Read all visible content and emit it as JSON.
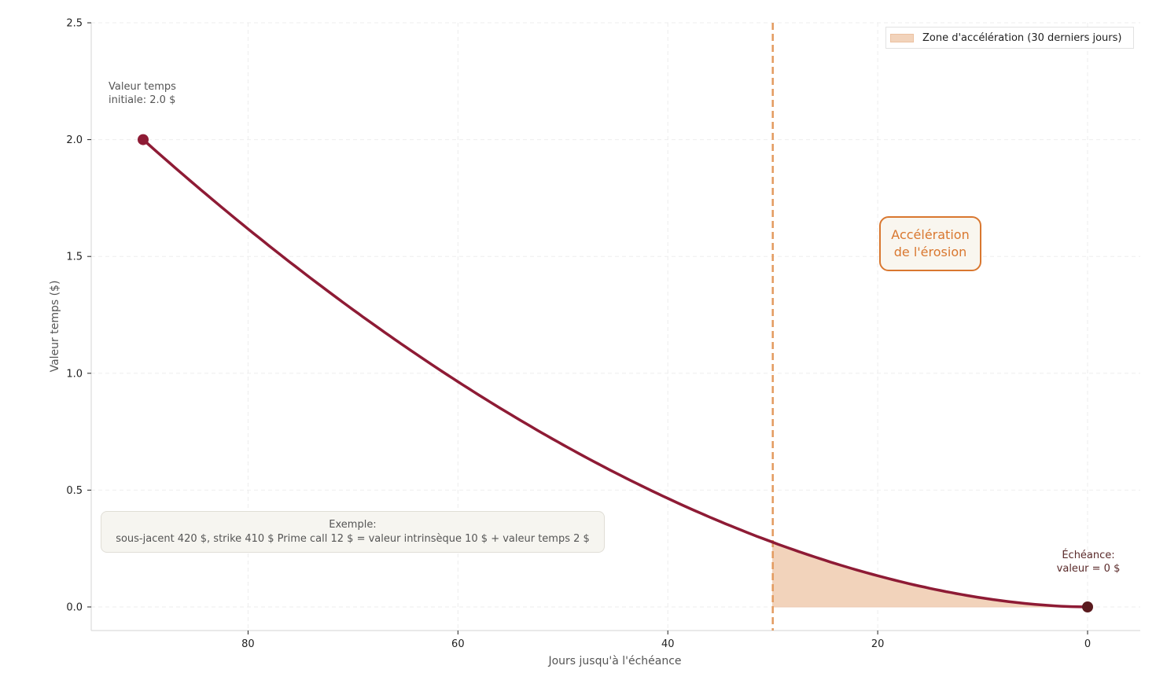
{
  "chart_data": {
    "type": "line",
    "title": "",
    "xlabel": "Jours jusqu'à l'échéance",
    "ylabel": "Valeur temps ($)",
    "xlim": [
      95,
      -5
    ],
    "ylim": [
      -0.1,
      2.5
    ],
    "x_inverted": true,
    "grid": true,
    "legend_position": "upper right",
    "x_ticks": [
      80,
      60,
      40,
      20,
      0
    ],
    "y_ticks": [
      0.0,
      0.5,
      1.0,
      1.5,
      2.0,
      2.5
    ],
    "y_tick_labels": [
      "0.0",
      "0.5",
      "1.0",
      "1.5",
      "2.0",
      "2.5"
    ],
    "series": [
      {
        "name": "Valeur temps",
        "color": "#8e1b35",
        "x": [
          90,
          85,
          80,
          75,
          70,
          65,
          60,
          55,
          50,
          45,
          40,
          35,
          30,
          25,
          20,
          15,
          10,
          5,
          0
        ],
        "values": [
          2.0,
          1.81,
          1.62,
          1.44,
          1.27,
          1.11,
          0.96,
          0.83,
          0.7,
          0.57,
          0.46,
          0.36,
          0.28,
          0.2,
          0.13,
          0.08,
          0.04,
          0.01,
          0.0
        ]
      }
    ],
    "shaded_region": {
      "label": "Zone d'accélération (30 derniers jours)",
      "x_from": 30,
      "x_to": 0,
      "color": "#f2d3bb"
    },
    "vertical_line": {
      "x": 30,
      "style": "dashed",
      "color": "#e39a5e"
    },
    "markers": [
      {
        "x": 90,
        "y": 2.0,
        "color": "#8e1b35"
      },
      {
        "x": 0,
        "y": 0.0,
        "color": "#5a1a1e"
      }
    ],
    "annotations": [
      {
        "text": "Valeur temps\ninitiale: 2.0 $",
        "x": 90,
        "y": 2.0
      },
      {
        "text": "Échéance:\nvaleur = 0 $",
        "x": 0,
        "y": 0.0
      },
      {
        "text": "Accélération\nde l'érosion",
        "x": 15,
        "y": 1.55
      },
      {
        "text": "Exemple:\nsous-jacent 420 $, strike 410 $ Prime call 12 $ = valeur intrinsèque 10 $ + valeur temps 2 $"
      }
    ]
  },
  "legend": {
    "label": "Zone d'accélération (30 derniers jours)"
  },
  "annotations": {
    "start_line1": "Valeur temps",
    "start_line2": "initiale: 2.0 $",
    "end_line1": "Échéance:",
    "end_line2": "valeur = 0 $",
    "accel_line1": "Accélération",
    "accel_line2": "de l'érosion",
    "example_line1": "Exemple:",
    "example_line2": "sous-jacent 420 $, strike 410 $ Prime call 12 $ = valeur intrinsèque 10 $ + valeur temps 2 $"
  },
  "axes": {
    "xlabel": "Jours jusqu'à l'échéance",
    "ylabel": "Valeur temps ($)",
    "x_tick_labels": [
      "80",
      "60",
      "40",
      "20",
      "0"
    ],
    "y_tick_labels": [
      "0.0",
      "0.5",
      "1.0",
      "1.5",
      "2.0",
      "2.5"
    ]
  }
}
